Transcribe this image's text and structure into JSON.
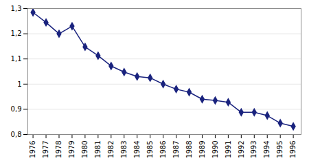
{
  "chart_data": {
    "type": "line",
    "x": [
      1976,
      1977,
      1978,
      1979,
      1980,
      1981,
      1982,
      1983,
      1984,
      1985,
      1986,
      1987,
      1988,
      1989,
      1990,
      1991,
      1992,
      1993,
      1994,
      1995,
      1996
    ],
    "values": [
      1.285,
      1.245,
      1.2,
      1.23,
      1.148,
      1.113,
      1.072,
      1.048,
      1.03,
      1.025,
      1.0,
      0.98,
      0.968,
      0.94,
      0.935,
      0.928,
      0.888,
      0.888,
      0.875,
      0.845,
      0.832
    ],
    "color": "#1a237e",
    "marker": "diamond",
    "xlim": [
      1975.6,
      1996.6
    ],
    "xticks": [
      1976,
      1977,
      1978,
      1979,
      1980,
      1981,
      1982,
      1983,
      1984,
      1985,
      1986,
      1987,
      1988,
      1989,
      1990,
      1991,
      1992,
      1993,
      1994,
      1995,
      1996
    ],
    "ylim": [
      0.8,
      1.3
    ],
    "yticks": [
      {
        "value": 0.8,
        "label": "0,8"
      },
      {
        "value": 0.9,
        "label": "0,9"
      },
      1,
      {
        "value": 1.1,
        "label": "1,1"
      },
      {
        "value": 1.2,
        "label": "1,2"
      },
      {
        "value": 1.3,
        "label": "1,3"
      }
    ],
    "grid": true
  }
}
